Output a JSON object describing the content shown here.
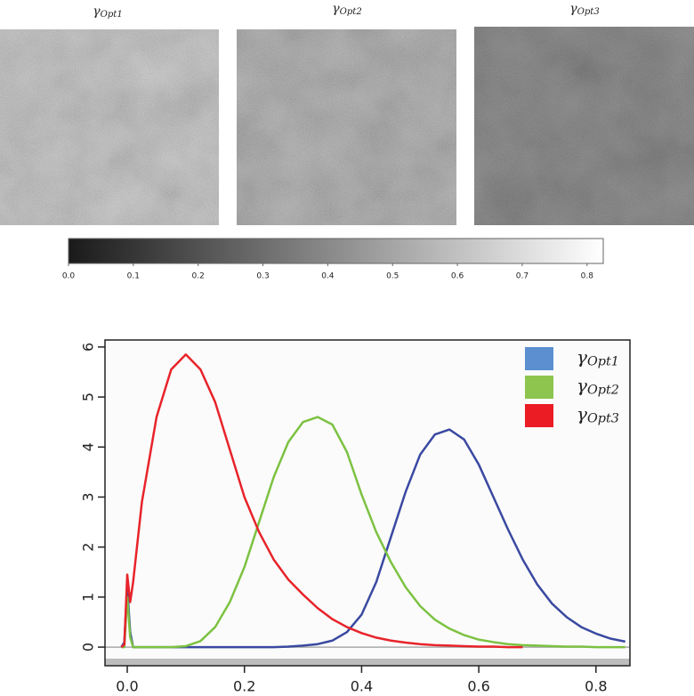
{
  "images": [
    {
      "title": "γOpt1"
    },
    {
      "title": "γOpt2"
    },
    {
      "title": "γOpt3"
    }
  ],
  "chart_data": [
    {
      "type": "colorbar",
      "colors": [
        "#1a1a1a",
        "#ffffff"
      ],
      "xlim": [
        0,
        0.825
      ],
      "xticks": [
        {
          "value": 0,
          "label": "0.0"
        },
        0.1,
        0.2,
        0.3,
        0.4,
        0.5,
        0.6,
        0.7,
        0.8
      ]
    },
    {
      "type": "line",
      "x": [
        -0.01,
        -0.005,
        0,
        0.005,
        0.01,
        0.025,
        0.05,
        0.075,
        0.1,
        0.125,
        0.15,
        0.175,
        0.2,
        0.225,
        0.25,
        0.275,
        0.3,
        0.325,
        0.35,
        0.375,
        0.4,
        0.425,
        0.45,
        0.475,
        0.5,
        0.525,
        0.55,
        0.575,
        0.6,
        0.625,
        0.65,
        0.675,
        0.7,
        0.725,
        0.75,
        0.775,
        0.8,
        0.825,
        0.85
      ],
      "series": [
        {
          "name": "γOpt1",
          "color": "#3a49a1",
          "legend_color": "#5b8fd0",
          "values": [
            0,
            0.1,
            1.2,
            0.3,
            0,
            0,
            0,
            0,
            0,
            0,
            0,
            0,
            0,
            0,
            0,
            0.01,
            0.03,
            0.06,
            0.13,
            0.3,
            0.65,
            1.3,
            2.2,
            3.1,
            3.85,
            4.25,
            4.35,
            4.15,
            3.65,
            3.0,
            2.35,
            1.75,
            1.25,
            0.87,
            0.6,
            0.4,
            0.27,
            0.17,
            0.11
          ]
        },
        {
          "name": "γOpt2",
          "color": "#7cc242",
          "legend_color": "#8dc54f",
          "values": [
            0,
            0,
            1.0,
            0.2,
            0,
            0,
            0,
            0,
            0.02,
            0.12,
            0.4,
            0.9,
            1.6,
            2.5,
            3.4,
            4.1,
            4.5,
            4.6,
            4.45,
            3.9,
            3.05,
            2.3,
            1.7,
            1.2,
            0.82,
            0.55,
            0.37,
            0.24,
            0.15,
            0.1,
            0.06,
            0.04,
            0.03,
            0.02,
            0.01,
            0.01,
            0,
            0,
            0
          ]
        },
        {
          "name": "γOpt3",
          "color": "#e8232a",
          "legend_color": "#ec1c24",
          "values": [
            0,
            0.05,
            1.45,
            0.9,
            1.3,
            2.9,
            4.6,
            5.55,
            5.85,
            5.55,
            4.9,
            3.95,
            3.0,
            2.3,
            1.75,
            1.35,
            1.05,
            0.78,
            0.56,
            0.4,
            0.28,
            0.19,
            0.13,
            0.09,
            0.06,
            0.04,
            0.03,
            0.02,
            0.01,
            0.01,
            0,
            0,
            null,
            null,
            null,
            null,
            null,
            null,
            null
          ]
        }
      ],
      "xlim": [
        -0.038,
        0.858
      ],
      "ylim": [
        -0.23,
        6.14
      ],
      "xticks": [
        {
          "value": 0,
          "label": "0.0"
        },
        0.2,
        0.4,
        0.6,
        0.8
      ],
      "yticks": [
        0,
        1,
        2,
        3,
        4,
        5,
        6
      ],
      "legend": "top-right"
    }
  ]
}
